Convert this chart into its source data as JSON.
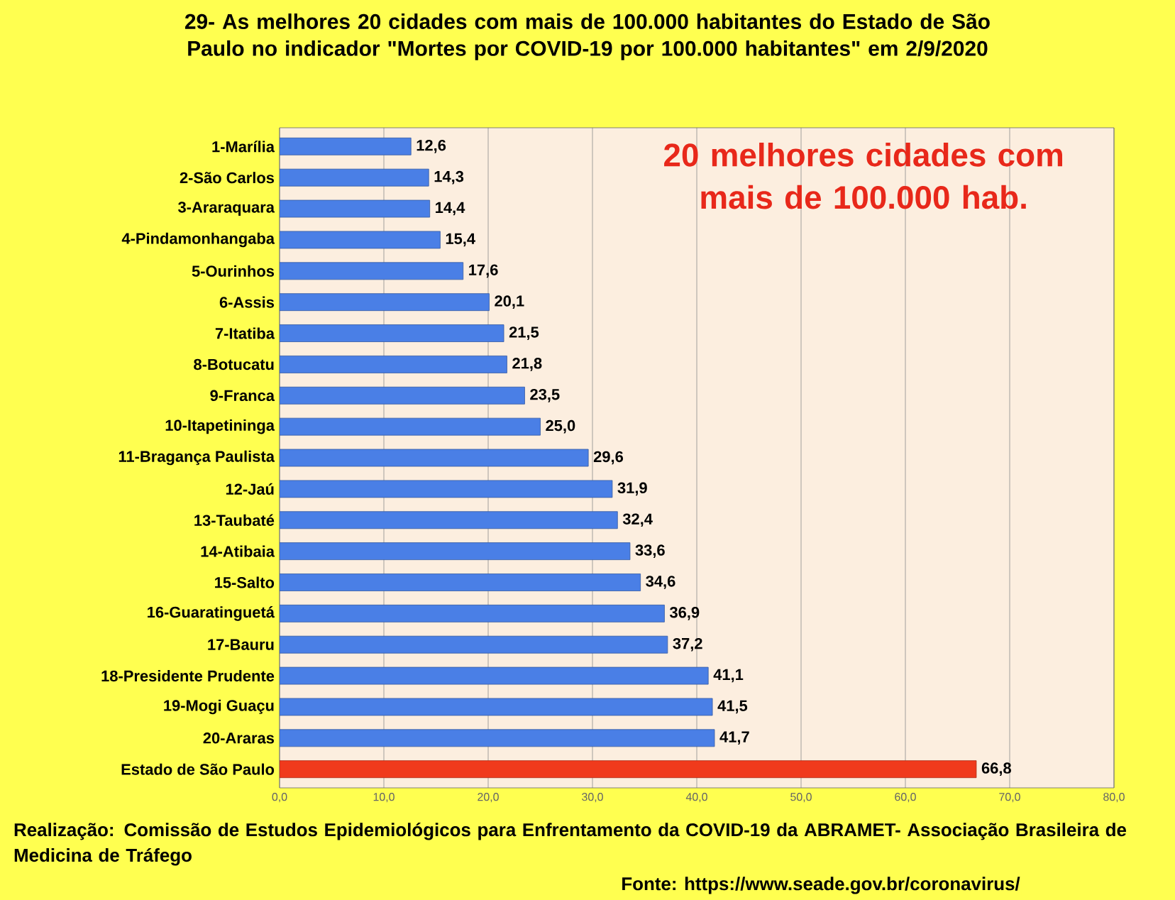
{
  "chart_data": {
    "type": "bar",
    "orientation": "horizontal",
    "title": "29- As melhores 20 cidades com mais de 100.000 habitantes do Estado de São Paulo  no indicador \"Mortes por COVID-19 por 100.000 habitantes\" em 2/9/2020",
    "categories": [
      "1-Marília",
      "2-São Carlos",
      "3-Araraquara",
      "4-Pindamonhangaba",
      "5-Ourinhos",
      "6-Assis",
      "7-Itatiba",
      "8-Botucatu",
      "9-Franca",
      "10-Itapetininga",
      "11-Bragança Paulista",
      "12-Jaú",
      "13-Taubaté",
      "14-Atibaia",
      "15-Salto",
      "16-Guaratinguetá",
      "17-Bauru",
      "18-Presidente Prudente",
      "19-Mogi Guaçu",
      "20-Araras",
      "Estado de São Paulo"
    ],
    "values": [
      12.6,
      14.3,
      14.4,
      15.4,
      17.6,
      20.1,
      21.5,
      21.8,
      23.5,
      25.0,
      29.6,
      31.9,
      32.4,
      33.6,
      34.6,
      36.9,
      37.2,
      41.1,
      41.5,
      41.7,
      66.8
    ],
    "value_labels": [
      "12,6",
      "14,3",
      "14,4",
      "15,4",
      "17,6",
      "20,1",
      "21,5",
      "21,8",
      "23,5",
      "25,0",
      "29,6",
      "31,9",
      "32,4",
      "33,6",
      "34,6",
      "36,9",
      "37,2",
      "41,1",
      "41,5",
      "41,7",
      "66,8"
    ],
    "colors": [
      "#4a7fe6",
      "#4a7fe6",
      "#4a7fe6",
      "#4a7fe6",
      "#4a7fe6",
      "#4a7fe6",
      "#4a7fe6",
      "#4a7fe6",
      "#4a7fe6",
      "#4a7fe6",
      "#4a7fe6",
      "#4a7fe6",
      "#4a7fe6",
      "#4a7fe6",
      "#4a7fe6",
      "#4a7fe6",
      "#4a7fe6",
      "#4a7fe6",
      "#4a7fe6",
      "#4a7fe6",
      "#f03a1c"
    ],
    "xlim": [
      0,
      80
    ],
    "xticks": [
      {
        "value": 0,
        "label": "0,0"
      },
      {
        "value": 10,
        "label": "10,0"
      },
      {
        "value": 20,
        "label": "20,0"
      },
      {
        "value": 30,
        "label": "30,0"
      },
      {
        "value": 40,
        "label": "40,0"
      },
      {
        "value": 50,
        "label": "50,0"
      },
      {
        "value": 60,
        "label": "60,0"
      },
      {
        "value": 70,
        "label": "70,0"
      },
      {
        "value": 80,
        "label": "80,0"
      }
    ],
    "grid": "x",
    "annotations": [
      "20 melhores cidades com mais de 100.000 hab.",
      "Realização: Comissão de Estudos Epidemiológicos para Enfrentamento da COVID-19 da ABRAMET- Associação Brasileira de Medicina de Tráfego",
      "Fonte: https://www.seade.gov.br/coronavirus/"
    ]
  }
}
